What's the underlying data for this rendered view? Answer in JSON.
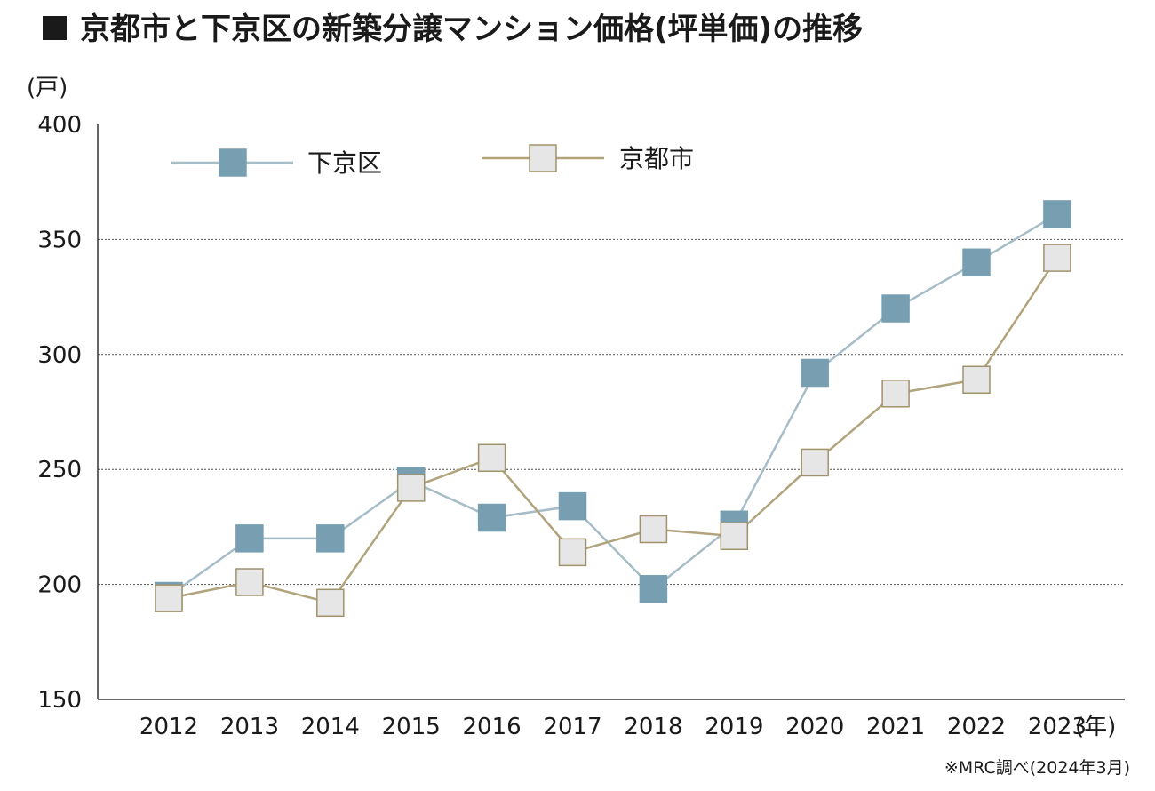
{
  "chart_data": {
    "type": "line",
    "title": "京都市と下京区の新築分譲マンション価格(坪単価)の推移",
    "ylabel": "(戸)",
    "xlabel_suffix": "(年)",
    "source": "※MRC調べ(2024年3月)",
    "categories": [
      "2012",
      "2013",
      "2014",
      "2015",
      "2016",
      "2017",
      "2018",
      "2019",
      "2020",
      "2021",
      "2022",
      "2023"
    ],
    "ylim": [
      150,
      400
    ],
    "yticks": [
      400,
      350,
      300,
      250,
      200,
      150
    ],
    "grid_values": [
      350,
      300,
      250,
      200
    ],
    "grid": true,
    "legend_position": "top-left",
    "series": [
      {
        "name": "下京区",
        "values": [
          195,
          220,
          220,
          245,
          229,
          234,
          198,
          226,
          292,
          320,
          340,
          361
        ],
        "line_color": "#a6bcc6",
        "marker_fill": "#779fb1",
        "marker_stroke": "#779fb1"
      },
      {
        "name": "京都市",
        "values": [
          194,
          201,
          192,
          242,
          255,
          214,
          224,
          221,
          253,
          283,
          289,
          342
        ],
        "line_color": "#b1a47c",
        "marker_fill": "#e6e6e6",
        "marker_stroke": "#a0926a"
      }
    ]
  }
}
